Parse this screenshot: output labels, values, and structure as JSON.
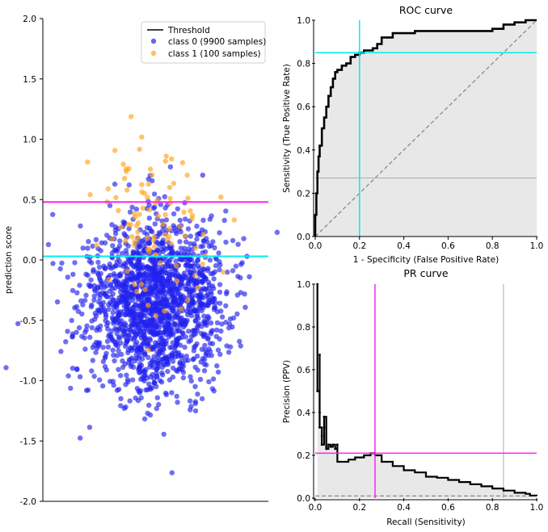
{
  "colors": {
    "class0": "#2222ee",
    "class1": "#ffa31a",
    "threshold_roc": "#ff22ee",
    "threshold_cyan": "#00eeee",
    "curve": "#000000",
    "fill": "#e8e8e8",
    "diag": "#8a8a8a"
  },
  "chart_data": [
    {
      "type": "scatter",
      "title": "",
      "xlabel": "",
      "ylabel": "prediction score",
      "ylim": [
        -2.0,
        2.0
      ],
      "yticks": [
        "-2.0",
        "-1.5",
        "-1.0",
        "-0.5",
        "0.0",
        "0.5",
        "1.0",
        "1.5",
        "2.0"
      ],
      "legend": {
        "position": "top-right",
        "threshold_label": "Threshold",
        "class0_label": "class 0 (9900 samples)",
        "class1_label": "class 1 (100 samples)"
      },
      "series": [
        {
          "name": "class 0 (9900 samples)",
          "count": 9900,
          "mean": -0.35,
          "std": 0.35
        },
        {
          "name": "class 1 (100 samples)",
          "count": 100,
          "mean": 0.3,
          "std": 0.35
        }
      ],
      "hlines": [
        {
          "y": 0.48,
          "color": "magenta"
        },
        {
          "y": 0.03,
          "color": "cyan"
        }
      ]
    },
    {
      "type": "line",
      "title": "ROC curve",
      "xlabel": "1 - Specificity (False Positive Rate)",
      "ylabel": "Sensitivity (True Positive Rate)",
      "xlim": [
        0,
        1
      ],
      "ylim": [
        0,
        1
      ],
      "xticks": [
        "0.0",
        "0.2",
        "0.4",
        "0.6",
        "0.8",
        "1.0"
      ],
      "yticks": [
        "0.0",
        "0.2",
        "0.4",
        "0.6",
        "0.8",
        "1.0"
      ],
      "x": [
        0,
        0.0,
        0.005,
        0.01,
        0.015,
        0.02,
        0.03,
        0.04,
        0.05,
        0.06,
        0.07,
        0.08,
        0.09,
        0.1,
        0.12,
        0.14,
        0.16,
        0.18,
        0.2,
        0.22,
        0.24,
        0.26,
        0.28,
        0.3,
        0.35,
        0.4,
        0.45,
        0.5,
        0.55,
        0.6,
        0.7,
        0.75,
        0.8,
        0.85,
        0.9,
        0.95,
        1.0
      ],
      "y": [
        0,
        0.1,
        0.2,
        0.3,
        0.37,
        0.42,
        0.5,
        0.55,
        0.6,
        0.65,
        0.69,
        0.73,
        0.76,
        0.77,
        0.79,
        0.8,
        0.83,
        0.84,
        0.85,
        0.86,
        0.86,
        0.87,
        0.89,
        0.92,
        0.94,
        0.94,
        0.95,
        0.95,
        0.95,
        0.95,
        0.95,
        0.95,
        0.96,
        0.98,
        0.99,
        1.0,
        1.0
      ],
      "diagonal": true,
      "hline": 0.27,
      "threshold_point": {
        "fpr": 0.2,
        "tpr": 0.85
      }
    },
    {
      "type": "line",
      "title": "PR curve",
      "xlabel": "Recall (Sensitivity)",
      "ylabel": "Precision (PPV)",
      "xlim": [
        0,
        1
      ],
      "ylim": [
        0,
        1
      ],
      "xticks": [
        "0.0",
        "0.2",
        "0.4",
        "0.6",
        "0.8",
        "1.0"
      ],
      "yticks": [
        "0.0",
        "0.2",
        "0.4",
        "0.6",
        "0.8",
        "1.0"
      ],
      "x": [
        0.01,
        0.01,
        0.02,
        0.02,
        0.02,
        0.03,
        0.03,
        0.04,
        0.04,
        0.05,
        0.05,
        0.06,
        0.07,
        0.08,
        0.09,
        0.1,
        0.1,
        0.12,
        0.15,
        0.18,
        0.22,
        0.25,
        0.27,
        0.3,
        0.35,
        0.4,
        0.45,
        0.5,
        0.55,
        0.6,
        0.65,
        0.7,
        0.75,
        0.8,
        0.85,
        0.9,
        0.95,
        0.97,
        1.0
      ],
      "y": [
        1.0,
        0.5,
        0.67,
        0.4,
        0.33,
        0.29,
        0.25,
        0.33,
        0.38,
        0.24,
        0.23,
        0.25,
        0.24,
        0.25,
        0.23,
        0.25,
        0.17,
        0.17,
        0.18,
        0.19,
        0.2,
        0.21,
        0.2,
        0.17,
        0.15,
        0.13,
        0.12,
        0.1,
        0.095,
        0.085,
        0.075,
        0.065,
        0.055,
        0.045,
        0.035,
        0.025,
        0.02,
        0.012,
        0.01
      ],
      "baseline": 0.01,
      "threshold_point": {
        "recall": 0.27,
        "precision": 0.21
      },
      "vline": 0.85
    }
  ]
}
